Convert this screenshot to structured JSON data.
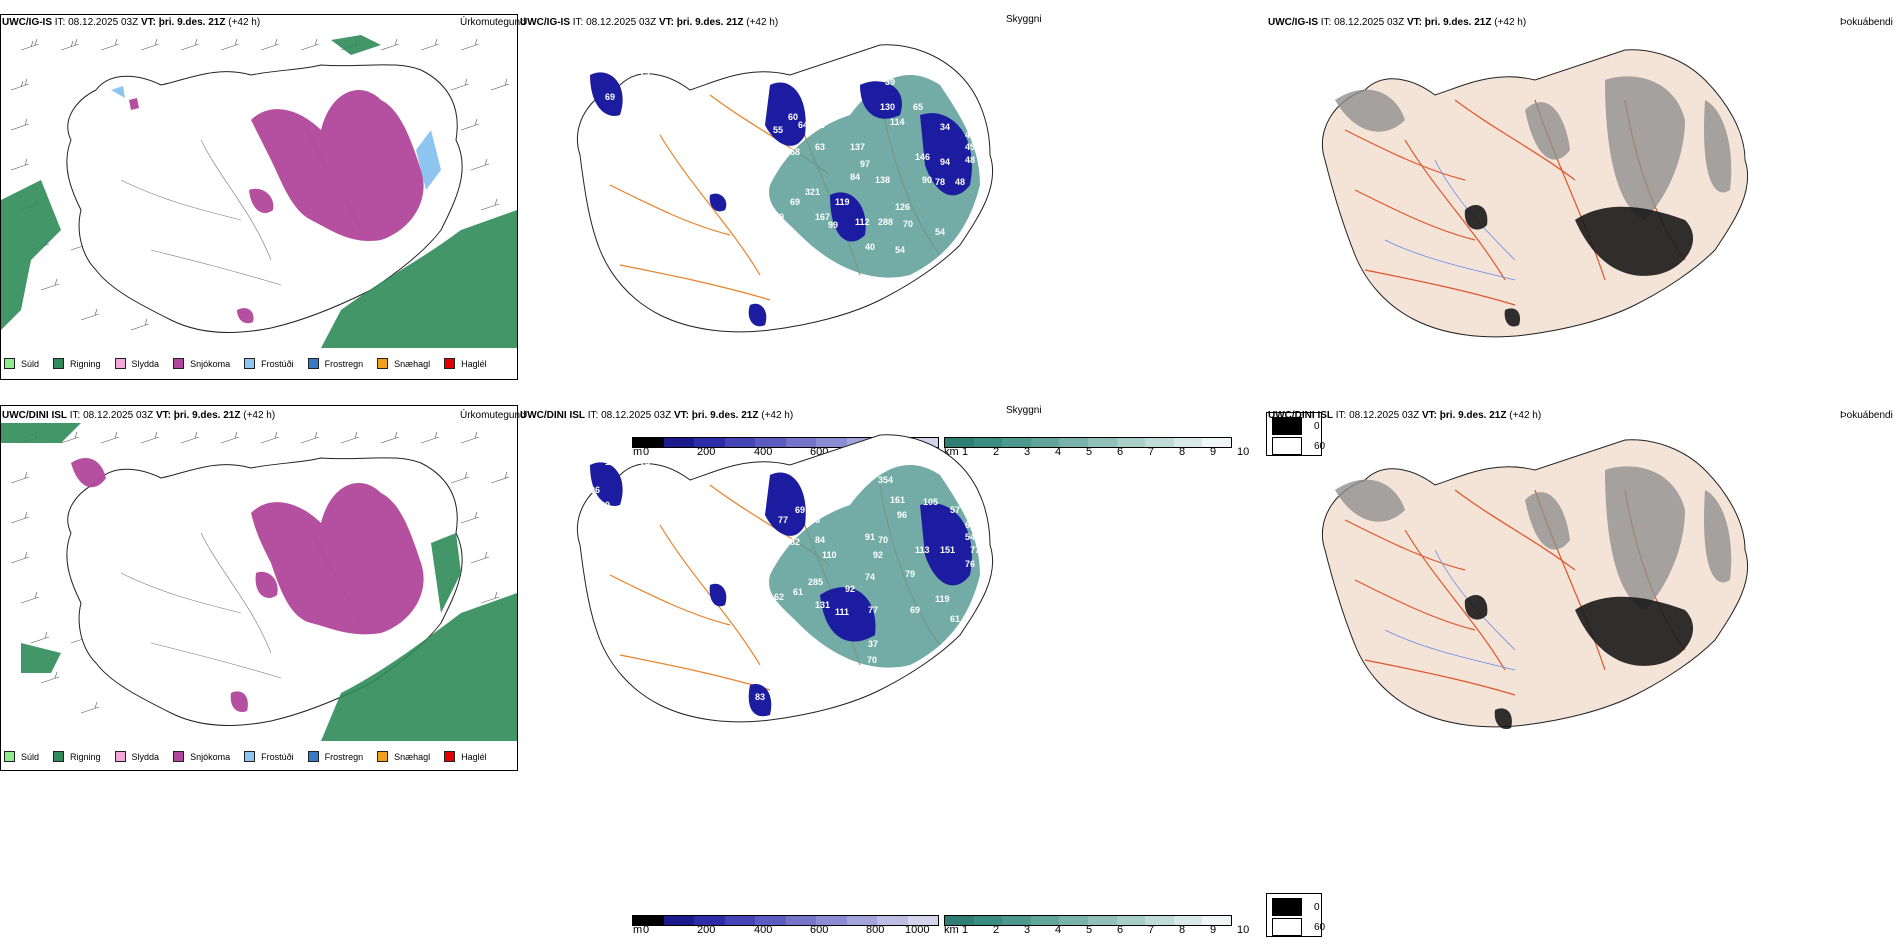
{
  "rows": [
    {
      "precip": {
        "model": "UWC/IG-IS",
        "it_label": "IT:",
        "it": "08.12.2025 03Z",
        "vt_label": "VT:",
        "vt": "þri. 9.des. 21Z",
        "lead": "(+42 h)",
        "title": "Úrkomutegund"
      },
      "cloud": {
        "model": "UWC/IG-IS",
        "it_label": "IT:",
        "it": "08.12.2025 03Z",
        "vt_label": "VT:",
        "vt": "þri. 9.des. 21Z",
        "lead": "(+42 h)",
        "title": "Skyggni"
      },
      "fog": {
        "model": "UWC/IG-IS",
        "it_label": "IT:",
        "it": "08.12.2025 03Z",
        "vt_label": "VT:",
        "vt": "þri. 9.des. 21Z",
        "lead": "(+42 h)",
        "title": "Þokuábendi"
      },
      "labels": [
        "69",
        "74",
        "56",
        "10",
        "75",
        "55",
        "60",
        "64",
        "53",
        "58",
        "63",
        "39",
        "130",
        "65",
        "114",
        "34",
        "47",
        "45",
        "48",
        "137",
        "97",
        "146",
        "94",
        "84",
        "138",
        "90",
        "78",
        "48",
        "321",
        "119",
        "126",
        "167",
        "112",
        "288",
        "70",
        "99",
        "54",
        "79",
        "69",
        "89",
        "40",
        "54",
        "40"
      ]
    },
    {
      "precip": {
        "model": "UWC/DINI ISL",
        "it_label": "IT:",
        "it": "08.12.2025 03Z",
        "vt_label": "VT:",
        "vt": "þri. 9.des. 21Z",
        "lead": "(+42 h)",
        "title": "Úrkomutegund"
      },
      "cloud": {
        "model": "UWC/DINI ISL",
        "it_label": "IT:",
        "it": "08.12.2025 03Z",
        "vt_label": "VT:",
        "vt": "þri. 9.des. 21Z",
        "lead": "(+42 h)",
        "title": "Skyggni"
      },
      "fog": {
        "model": "UWC/DINI ISL",
        "it_label": "IT:",
        "it": "08.12.2025 03Z",
        "vt_label": "VT:",
        "vt": "þri. 9.des. 21Z",
        "lead": "(+42 h)",
        "title": "Þokuábendi"
      },
      "labels": [
        "159",
        "76",
        "96",
        "90",
        "46",
        "71",
        "69",
        "77",
        "96",
        "82",
        "84",
        "110",
        "354",
        "161",
        "105",
        "96",
        "57",
        "61",
        "54",
        "77",
        "76",
        "91",
        "70",
        "92",
        "113",
        "151",
        "285",
        "92",
        "74",
        "79",
        "131",
        "111",
        "77",
        "119",
        "69",
        "61",
        "37",
        "70",
        "94",
        "62",
        "61",
        "83",
        "31"
      ]
    }
  ],
  "legend": [
    {
      "label": "Súld",
      "color": "#90e890"
    },
    {
      "label": "Rigning",
      "color": "#2e8b57"
    },
    {
      "label": "Slydda",
      "color": "#f4a6d7"
    },
    {
      "label": "Snjókoma",
      "color": "#b0479a"
    },
    {
      "label": "Frostúði",
      "color": "#8ec4f0"
    },
    {
      "label": "Frostregn",
      "color": "#3a78c8"
    },
    {
      "label": "Snæhagl",
      "color": "#f0a020"
    },
    {
      "label": "Haglél",
      "color": "#e00000"
    }
  ],
  "ceiling_bar": {
    "unit": "m",
    "ticks": [
      "0",
      "200",
      "400",
      "600",
      "800",
      "1000"
    ],
    "colors": [
      "#000000",
      "#1a1a8c",
      "#2c2ca8",
      "#4444b4",
      "#5c5cc0",
      "#7474c8",
      "#8c8cd4",
      "#a4a4dc",
      "#bcbce4",
      "#d4d4ec"
    ]
  },
  "vis_bar": {
    "unit": "km",
    "ticks": [
      "1",
      "2",
      "3",
      "4",
      "5",
      "6",
      "7",
      "8",
      "9",
      "10"
    ],
    "colors": [
      "#2e7e74",
      "#3a8c80",
      "#4c988c",
      "#60a49a",
      "#78b2aa",
      "#90c0b8",
      "#a8cec8",
      "#c0dcd8",
      "#d8eae8",
      "#f0f6f6"
    ]
  },
  "fog_legend": {
    "items": [
      {
        "label": "0",
        "color": "#000000"
      },
      {
        "label": "60",
        "color": "#ffffff"
      }
    ]
  }
}
